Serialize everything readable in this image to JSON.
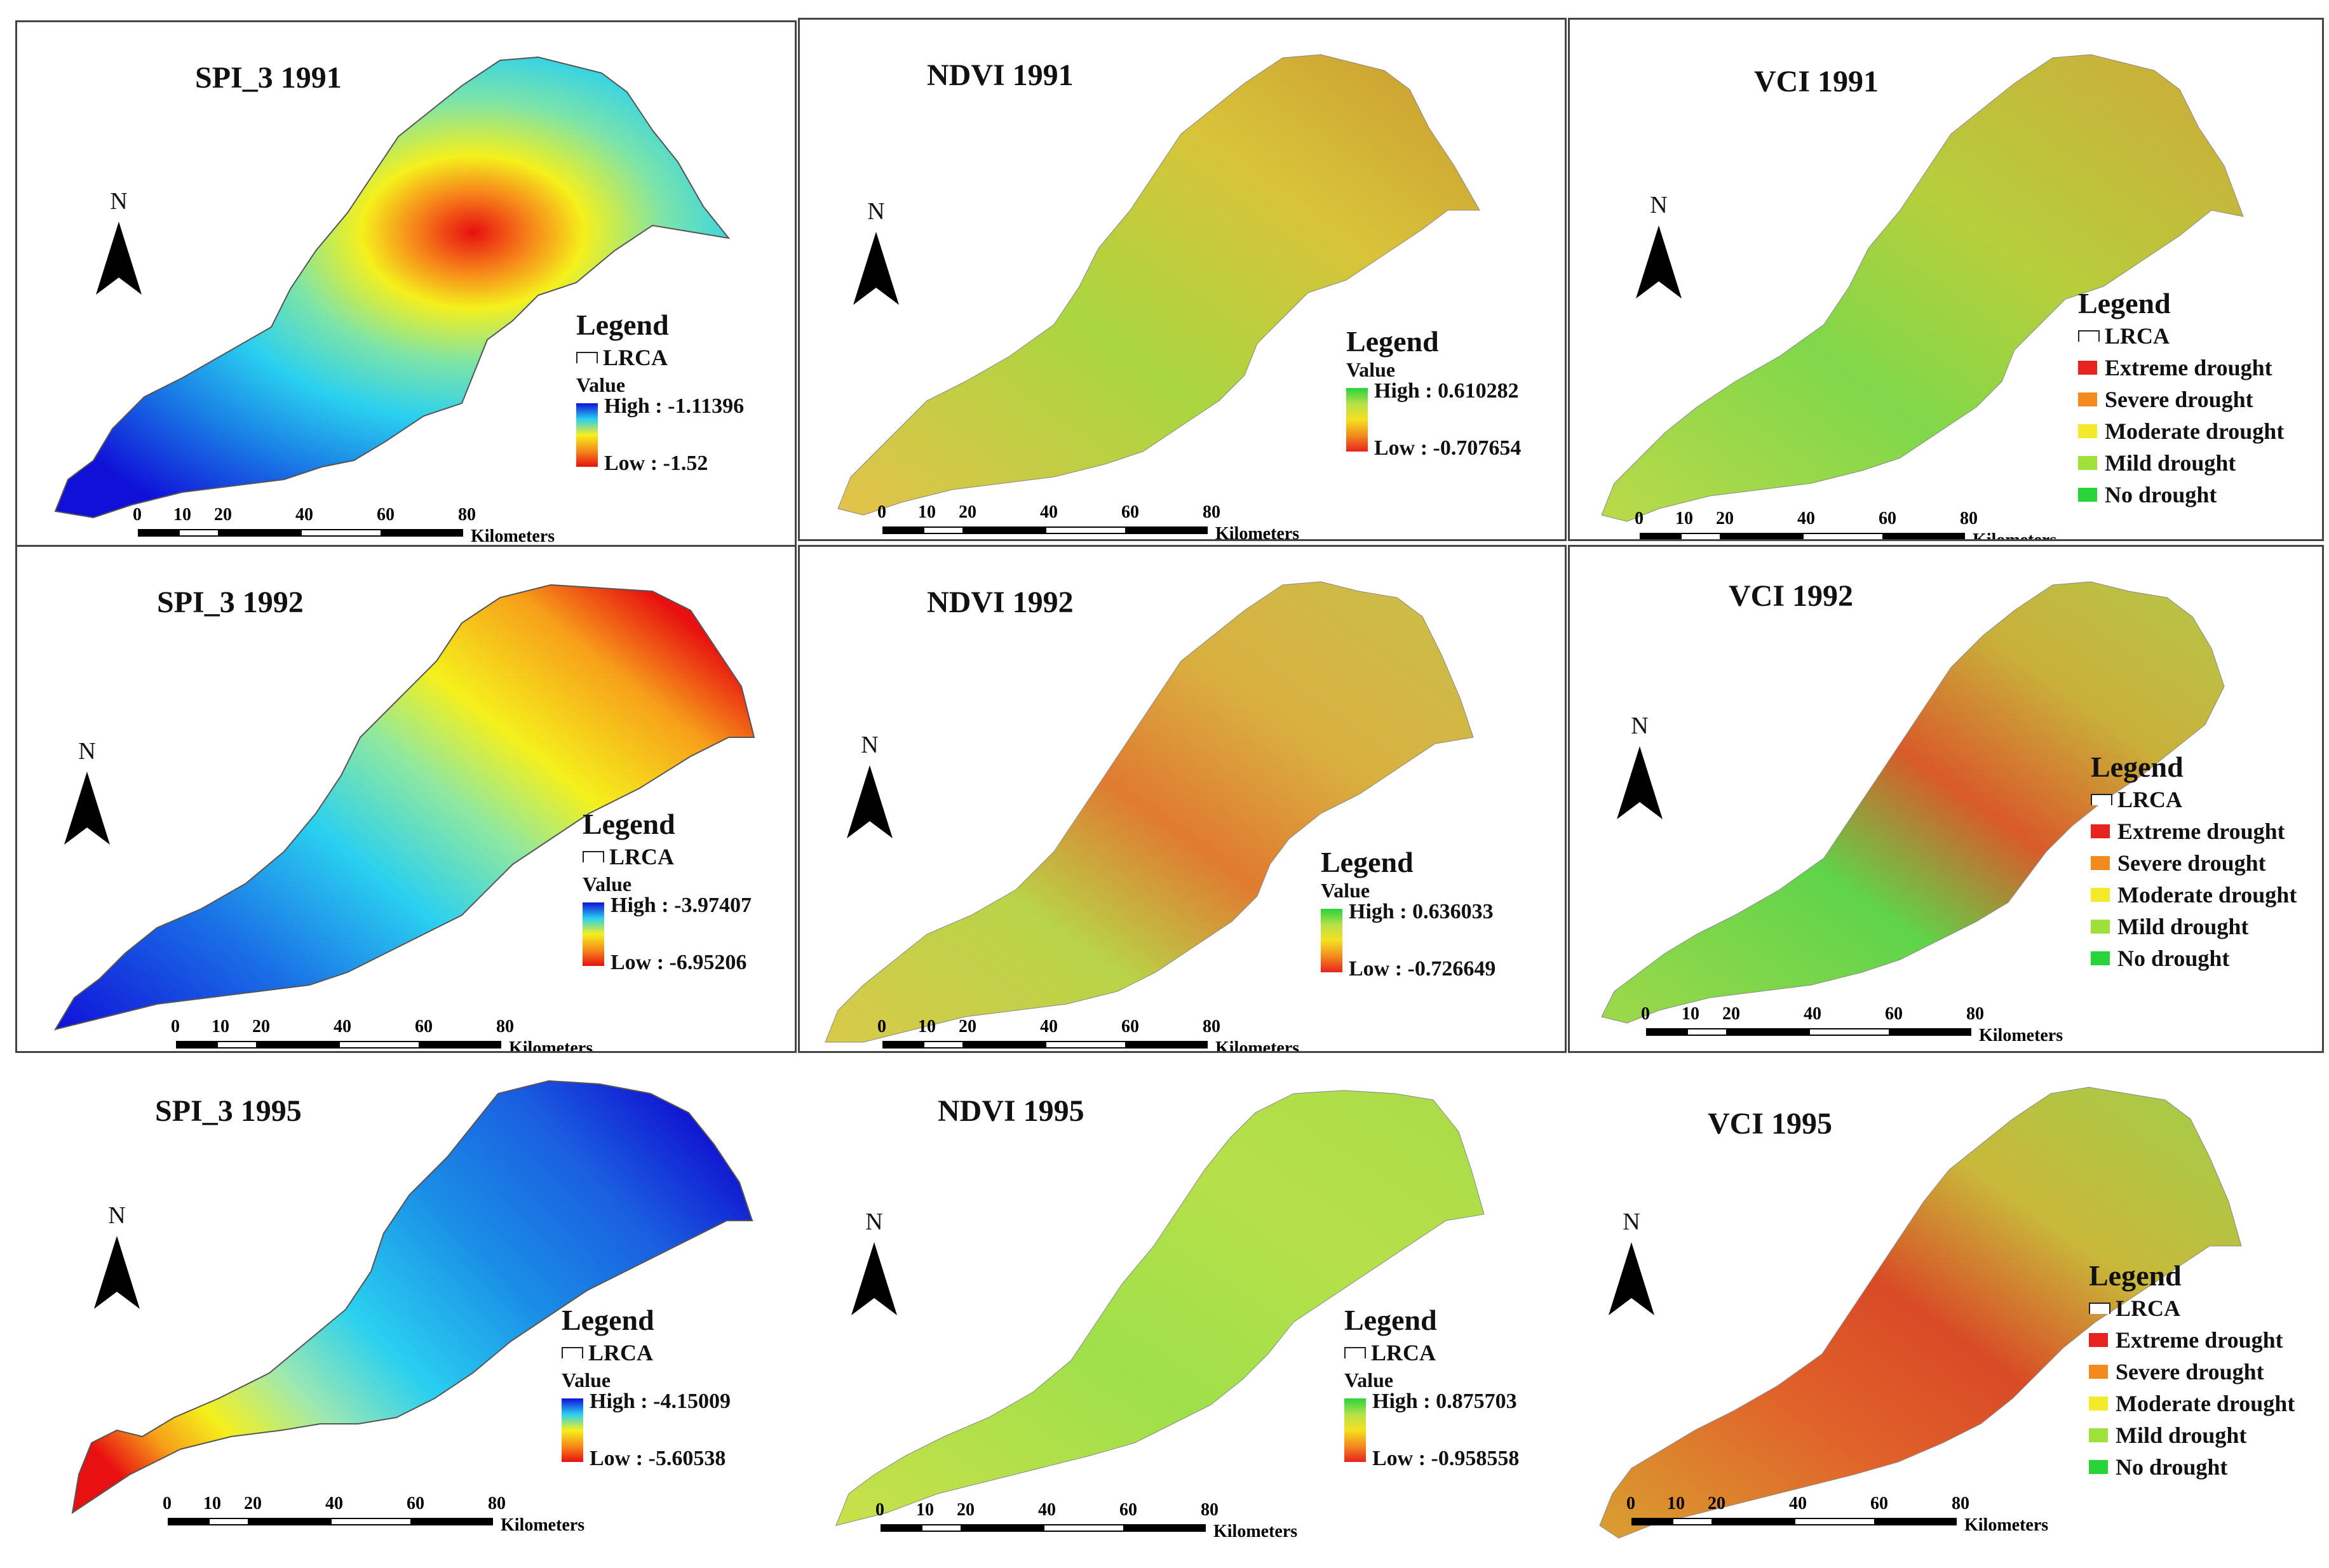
{
  "common": {
    "north_label": "N",
    "legend_title": "Legend",
    "lrca_label": "LRCA",
    "value_label": "Value",
    "high_prefix": "High : ",
    "low_prefix": "Low : ",
    "scale_ticks": [
      "0",
      "10",
      "20",
      "40",
      "60",
      "80"
    ],
    "scale_unit": "Kilometers",
    "vci_classes": [
      {
        "label": "Extreme drought",
        "color": "#e8221f"
      },
      {
        "label": "Severe drought",
        "color": "#f28a1e"
      },
      {
        "label": "Moderate drought",
        "color": "#f2ea2a"
      },
      {
        "label": "Mild drought",
        "color": "#9fe03a"
      },
      {
        "label": "No drought",
        "color": "#28d43a"
      }
    ]
  },
  "panels": [
    {
      "id": "spi-1991",
      "title": "SPI_3 1991",
      "type": "spi",
      "high": "-1.11396",
      "low": "-1.52",
      "show_lrca": true
    },
    {
      "id": "ndvi-1991",
      "title": "NDVI 1991",
      "type": "ndvi",
      "high": "0.610282",
      "low": "-0.707654",
      "show_lrca": false
    },
    {
      "id": "vci-1991",
      "title": "VCI 1991",
      "type": "vci"
    },
    {
      "id": "spi-1992",
      "title": "SPI_3 1992",
      "type": "spi",
      "high": "-3.97407",
      "low": "-6.95206",
      "show_lrca": true
    },
    {
      "id": "ndvi-1992",
      "title": "NDVI 1992",
      "type": "ndvi",
      "high": "0.636033",
      "low": "-0.726649",
      "show_lrca": false
    },
    {
      "id": "vci-1992",
      "title": "VCI 1992",
      "type": "vci"
    },
    {
      "id": "spi-1995",
      "title": "SPI_3 1995",
      "type": "spi",
      "high": "-4.15009",
      "low": "-5.60538",
      "show_lrca": true
    },
    {
      "id": "ndvi-1995",
      "title": "NDVI 1995",
      "type": "ndvi",
      "high": "0.875703",
      "low": "-0.958558",
      "show_lrca": true
    },
    {
      "id": "vci-1995",
      "title": "VCI 1995",
      "type": "vci"
    }
  ]
}
